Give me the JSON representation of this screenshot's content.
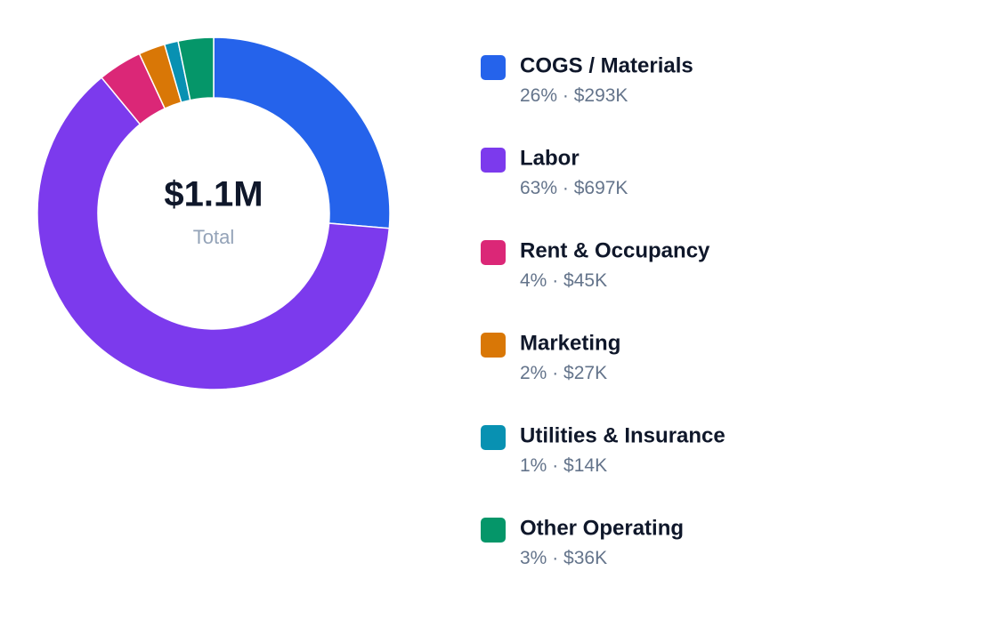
{
  "chart_data": {
    "type": "donut",
    "categories": [
      "COGS / Materials",
      "Labor",
      "Rent & Occupancy",
      "Marketing",
      "Utilities & Insurance",
      "Other Operating"
    ],
    "values": [
      293000,
      697000,
      45000,
      27000,
      14000,
      36000
    ],
    "value_labels": [
      "$293K",
      "$697K",
      "$45K",
      "$27K",
      "$14K",
      "$36K"
    ],
    "percents": [
      {
        "value": 26,
        "label": "26%"
      },
      {
        "value": 63,
        "label": "63%"
      },
      {
        "value": 4,
        "label": "4%"
      },
      {
        "value": 2,
        "label": "2%"
      },
      {
        "value": 1,
        "label": "1%"
      },
      {
        "value": 3,
        "label": "3%"
      }
    ],
    "separator": "·",
    "colors": [
      "#2563eb",
      "#7c3aed",
      "#db2777",
      "#d97706",
      "#0891b2",
      "#059669"
    ],
    "total": {
      "value": 1100000,
      "label": "$1.1M"
    },
    "total_caption": "Total"
  }
}
